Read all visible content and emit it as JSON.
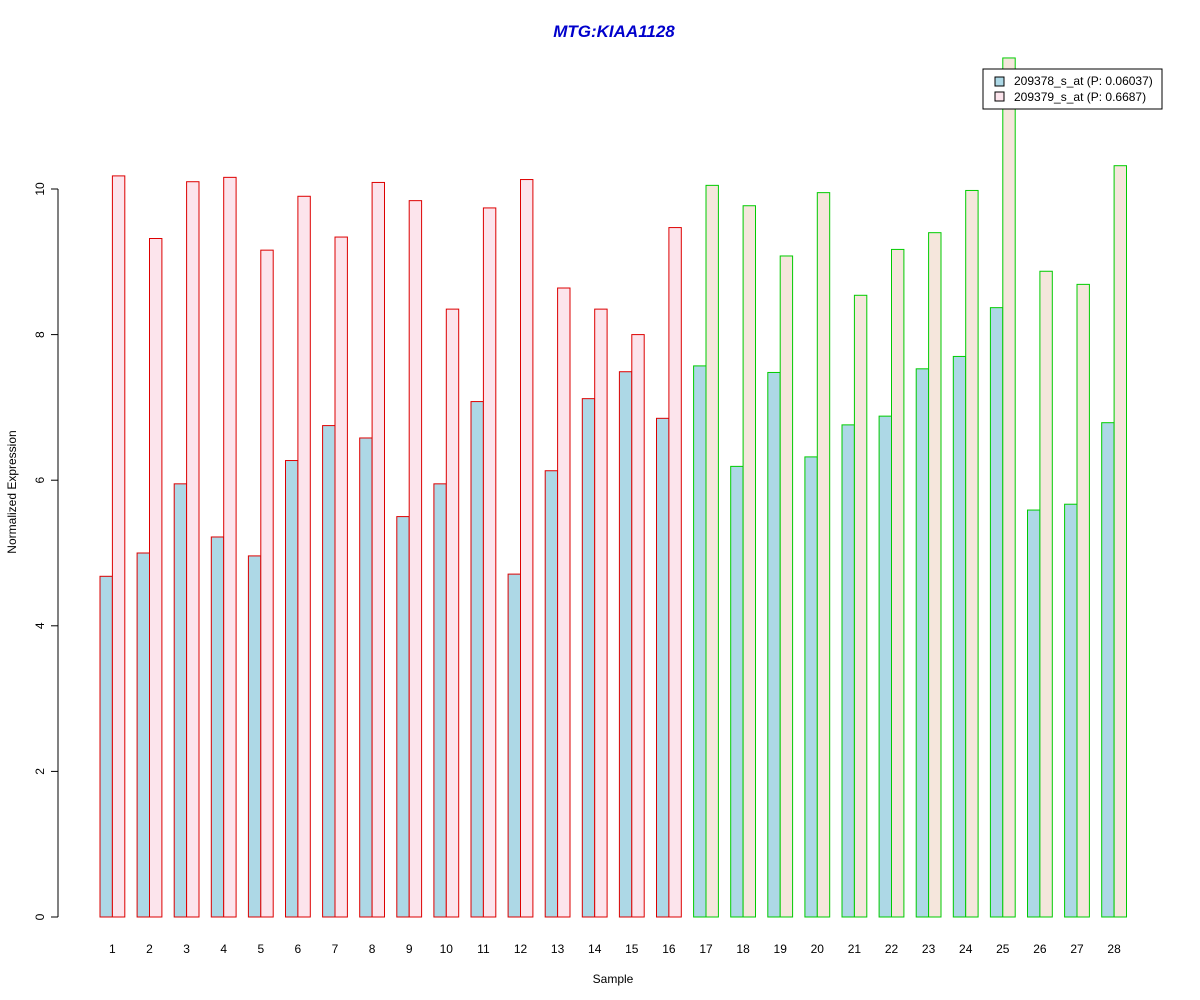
{
  "chart_data": {
    "type": "bar",
    "title": "MTG:KIAA1128",
    "xlabel": "Sample",
    "ylabel": "Normalized Expression",
    "ylim": [
      0,
      12
    ],
    "yticks": [
      0,
      2,
      4,
      6,
      8,
      10
    ],
    "grid": false,
    "legend_position": "top-right",
    "categories": [
      "1",
      "2",
      "3",
      "4",
      "5",
      "6",
      "7",
      "8",
      "9",
      "10",
      "11",
      "12",
      "13",
      "14",
      "15",
      "16",
      "17",
      "18",
      "19",
      "20",
      "21",
      "22",
      "23",
      "24",
      "25",
      "26",
      "27",
      "28"
    ],
    "series": [
      {
        "name": "209378_s_at (P: 0.06037)",
        "fill": "#add8e6",
        "values": [
          4.68,
          5.0,
          5.95,
          5.22,
          4.96,
          6.27,
          6.75,
          6.58,
          5.5,
          5.95,
          7.08,
          4.71,
          6.13,
          7.12,
          7.49,
          6.85,
          7.57,
          6.19,
          7.48,
          6.32,
          6.76,
          6.88,
          7.53,
          7.7,
          8.37,
          5.59,
          5.67,
          6.79
        ]
      },
      {
        "name": "209379_s_at (P: 0.6687)",
        "fill": "#fce4ec",
        "values": [
          10.18,
          9.32,
          10.1,
          10.16,
          9.16,
          9.9,
          9.34,
          10.09,
          9.84,
          8.35,
          9.74,
          10.13,
          8.64,
          8.35,
          8.0,
          9.47,
          10.05,
          9.77,
          9.08,
          9.95,
          8.54,
          9.17,
          9.4,
          9.98,
          11.8,
          8.87,
          8.69,
          10.32
        ]
      }
    ],
    "groups": [
      {
        "samples": [
          1,
          16
        ],
        "outline": "#dd0000"
      },
      {
        "samples": [
          17,
          28
        ],
        "outline": "#00cc00"
      }
    ],
    "colors": {
      "title": "#0000cc",
      "group2_fill_series2": "#f5e6dc"
    }
  }
}
